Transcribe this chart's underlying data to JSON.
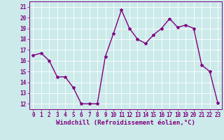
{
  "x": [
    0,
    1,
    2,
    3,
    4,
    5,
    6,
    7,
    8,
    9,
    10,
    11,
    12,
    13,
    14,
    15,
    16,
    17,
    18,
    19,
    20,
    21,
    22,
    23
  ],
  "y": [
    16.5,
    16.7,
    16.0,
    14.5,
    14.5,
    13.5,
    12.0,
    12.0,
    12.0,
    16.4,
    18.5,
    20.7,
    19.0,
    18.0,
    17.6,
    18.4,
    19.0,
    19.9,
    19.1,
    19.3,
    19.0,
    15.6,
    15.0,
    12.1
  ],
  "line_color": "#800080",
  "marker": "*",
  "marker_size": 3,
  "bg_color": "#cceaea",
  "grid_color": "#ffffff",
  "xlabel": "Windchill (Refroidissement éolien,°C)",
  "xlabel_color": "#800080",
  "tick_color": "#800080",
  "ylim": [
    11.5,
    21.5
  ],
  "xlim": [
    -0.5,
    23.5
  ],
  "yticks": [
    12,
    13,
    14,
    15,
    16,
    17,
    18,
    19,
    20,
    21
  ],
  "xticks": [
    0,
    1,
    2,
    3,
    4,
    5,
    6,
    7,
    8,
    9,
    10,
    11,
    12,
    13,
    14,
    15,
    16,
    17,
    18,
    19,
    20,
    21,
    22,
    23
  ],
  "tick_fontsize": 5.5,
  "xlabel_fontsize": 6.5,
  "line_width": 1.0
}
